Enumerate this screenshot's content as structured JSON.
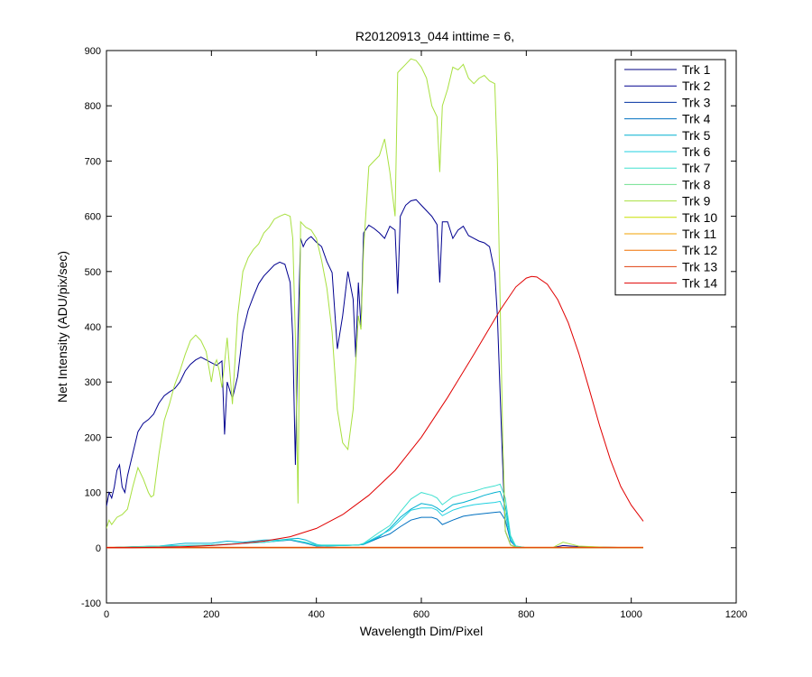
{
  "chart_data": {
    "type": "line",
    "title": "R20120913_044 inttime = 6,",
    "xlabel": "Wavelength Dim/Pixel",
    "ylabel": "Net Intensity (ADU/pix/sec)",
    "xlim": [
      0,
      1200
    ],
    "ylim": [
      -100,
      900
    ],
    "xticks": [
      0,
      200,
      400,
      600,
      800,
      1000,
      1200
    ],
    "yticks": [
      -100,
      0,
      100,
      200,
      300,
      400,
      500,
      600,
      700,
      800,
      900
    ],
    "grid": false,
    "legend_position": "top-right",
    "series": [
      {
        "name": "Trk 1",
        "color": "#000080",
        "x": [
          0,
          1023
        ],
        "y": [
          0,
          0
        ]
      },
      {
        "name": "Trk 2",
        "color": "#00008f",
        "x": [
          0,
          5,
          10,
          15,
          20,
          25,
          30,
          35,
          40,
          50,
          60,
          70,
          80,
          90,
          100,
          110,
          120,
          130,
          140,
          150,
          160,
          170,
          180,
          190,
          200,
          210,
          220,
          225,
          230,
          240,
          250,
          260,
          270,
          280,
          290,
          300,
          310,
          320,
          330,
          340,
          350,
          355,
          360,
          365,
          370,
          375,
          380,
          385,
          390,
          400,
          410,
          420,
          430,
          440,
          450,
          460,
          470,
          475,
          480,
          485,
          490,
          500,
          510,
          520,
          530,
          540,
          550,
          555,
          560,
          570,
          580,
          590,
          600,
          610,
          620,
          630,
          635,
          640,
          650,
          660,
          670,
          680,
          690,
          700,
          710,
          720,
          730,
          740,
          745,
          750,
          755,
          760,
          770,
          780,
          790,
          800,
          850,
          870,
          900,
          950,
          1000,
          1023
        ],
        "y": [
          75,
          100,
          90,
          110,
          140,
          150,
          110,
          100,
          130,
          170,
          210,
          225,
          232,
          242,
          262,
          275,
          282,
          288,
          300,
          320,
          332,
          340,
          345,
          340,
          335,
          330,
          338,
          205,
          300,
          270,
          310,
          390,
          430,
          455,
          478,
          492,
          502,
          512,
          517,
          513,
          480,
          380,
          150,
          390,
          560,
          545,
          555,
          560,
          563,
          553,
          545,
          518,
          498,
          360,
          420,
          500,
          450,
          345,
          480,
          400,
          570,
          584,
          578,
          570,
          560,
          582,
          575,
          460,
          600,
          620,
          628,
          630,
          620,
          610,
          600,
          585,
          480,
          590,
          590,
          560,
          575,
          582,
          565,
          560,
          555,
          552,
          545,
          498,
          420,
          280,
          150,
          30,
          5,
          1,
          0,
          0,
          0,
          4,
          2,
          1,
          0,
          0
        ]
      },
      {
        "name": "Trk 3",
        "color": "#0030a0",
        "x": [
          0,
          1023
        ],
        "y": [
          0,
          0
        ]
      },
      {
        "name": "Trk 4",
        "color": "#0070c0",
        "x": [
          0,
          100,
          200,
          300,
          350,
          380,
          400,
          450,
          480,
          490,
          520,
          540,
          560,
          580,
          600,
          620,
          630,
          640,
          660,
          680,
          700,
          720,
          740,
          750,
          760,
          770,
          780,
          800,
          850,
          1023
        ],
        "y": [
          0,
          3,
          5,
          10,
          14,
          8,
          3,
          4,
          5,
          6,
          18,
          25,
          38,
          50,
          55,
          55,
          52,
          42,
          50,
          57,
          60,
          62,
          64,
          65,
          50,
          12,
          2,
          0,
          0,
          0
        ]
      },
      {
        "name": "Trk 5",
        "color": "#00b0d0",
        "x": [
          0,
          50,
          100,
          150,
          200,
          230,
          260,
          300,
          330,
          350,
          365,
          380,
          390,
          400,
          420,
          450,
          480,
          490,
          520,
          540,
          560,
          580,
          600,
          620,
          630,
          640,
          660,
          680,
          700,
          720,
          740,
          750,
          760,
          770,
          780,
          800,
          850,
          1023
        ],
        "y": [
          0,
          2,
          3,
          8,
          8,
          12,
          10,
          14,
          14,
          16,
          17,
          14,
          10,
          6,
          3,
          4,
          5,
          6,
          20,
          35,
          55,
          70,
          80,
          77,
          72,
          65,
          78,
          82,
          88,
          95,
          100,
          102,
          75,
          20,
          3,
          0,
          0,
          0
        ]
      },
      {
        "name": "Trk 6",
        "color": "#20d0e0",
        "x": [
          0,
          100,
          200,
          300,
          350,
          380,
          400,
          450,
          480,
          490,
          520,
          540,
          560,
          580,
          600,
          620,
          630,
          640,
          660,
          680,
          700,
          720,
          740,
          750,
          760,
          770,
          780,
          800,
          850,
          1023
        ],
        "y": [
          0,
          3,
          5,
          10,
          15,
          9,
          4,
          4,
          5,
          7,
          22,
          32,
          50,
          68,
          72,
          72,
          68,
          58,
          68,
          74,
          78,
          80,
          82,
          84,
          62,
          15,
          2,
          0,
          0,
          0
        ]
      },
      {
        "name": "Trk 7",
        "color": "#40e0d0",
        "x": [
          0,
          100,
          200,
          300,
          350,
          380,
          400,
          450,
          480,
          490,
          520,
          540,
          560,
          580,
          600,
          620,
          630,
          640,
          660,
          680,
          700,
          720,
          740,
          750,
          760,
          770,
          780,
          800,
          850,
          1023
        ],
        "y": [
          0,
          3,
          5,
          10,
          15,
          10,
          5,
          5,
          5,
          8,
          28,
          40,
          65,
          88,
          100,
          95,
          90,
          78,
          92,
          98,
          102,
          108,
          112,
          115,
          90,
          22,
          3,
          0,
          0,
          0
        ]
      },
      {
        "name": "Trk 8",
        "color": "#70e090",
        "x": [
          0,
          1023
        ],
        "y": [
          0,
          0
        ]
      },
      {
        "name": "Trk 9",
        "color": "#a8e040",
        "x": [
          0,
          5,
          10,
          20,
          30,
          40,
          50,
          60,
          70,
          80,
          85,
          90,
          100,
          110,
          120,
          130,
          140,
          150,
          160,
          170,
          180,
          190,
          200,
          205,
          210,
          215,
          220,
          230,
          240,
          250,
          260,
          270,
          280,
          290,
          300,
          310,
          320,
          330,
          340,
          350,
          355,
          360,
          365,
          370,
          375,
          380,
          390,
          400,
          410,
          420,
          430,
          440,
          450,
          460,
          470,
          480,
          485,
          490,
          500,
          510,
          520,
          530,
          540,
          550,
          555,
          560,
          570,
          580,
          590,
          600,
          610,
          620,
          630,
          635,
          640,
          650,
          660,
          670,
          680,
          690,
          700,
          710,
          720,
          730,
          740,
          745,
          750,
          755,
          760,
          770,
          780,
          800,
          850,
          870,
          900,
          950,
          1000,
          1023
        ],
        "y": [
          35,
          50,
          42,
          55,
          60,
          70,
          110,
          145,
          125,
          100,
          92,
          95,
          170,
          230,
          260,
          295,
          320,
          350,
          375,
          385,
          375,
          355,
          300,
          330,
          340,
          320,
          290,
          380,
          260,
          420,
          500,
          525,
          540,
          550,
          570,
          580,
          595,
          600,
          604,
          600,
          560,
          380,
          80,
          590,
          585,
          580,
          575,
          560,
          520,
          470,
          390,
          250,
          190,
          178,
          250,
          420,
          395,
          540,
          690,
          700,
          710,
          740,
          680,
          600,
          860,
          865,
          875,
          885,
          882,
          870,
          850,
          800,
          780,
          680,
          800,
          830,
          870,
          865,
          875,
          850,
          840,
          850,
          855,
          845,
          840,
          700,
          450,
          200,
          30,
          5,
          1,
          0,
          0,
          10,
          3,
          1,
          0,
          0
        ]
      },
      {
        "name": "Trk 10",
        "color": "#c8e000",
        "x": [
          0,
          1023
        ],
        "y": [
          0,
          0
        ]
      },
      {
        "name": "Trk 11",
        "color": "#f0a000",
        "x": [
          0,
          1023
        ],
        "y": [
          0,
          0
        ]
      },
      {
        "name": "Trk 12",
        "color": "#f07000",
        "x": [
          0,
          1023
        ],
        "y": [
          1,
          1
        ]
      },
      {
        "name": "Trk 13",
        "color": "#e04010",
        "x": [
          0,
          1023
        ],
        "y": [
          0,
          0
        ]
      },
      {
        "name": "Trk 14",
        "color": "#e00000",
        "x": [
          0,
          50,
          100,
          150,
          200,
          250,
          300,
          350,
          400,
          450,
          500,
          550,
          600,
          650,
          700,
          750,
          780,
          800,
          810,
          820,
          840,
          860,
          880,
          900,
          920,
          940,
          960,
          980,
          1000,
          1023
        ],
        "y": [
          0,
          0,
          1,
          2,
          4,
          7,
          12,
          20,
          35,
          60,
          95,
          140,
          200,
          272,
          350,
          430,
          472,
          488,
          491,
          490,
          477,
          449,
          407,
          352,
          287,
          220,
          160,
          111,
          77,
          48
        ]
      }
    ]
  }
}
